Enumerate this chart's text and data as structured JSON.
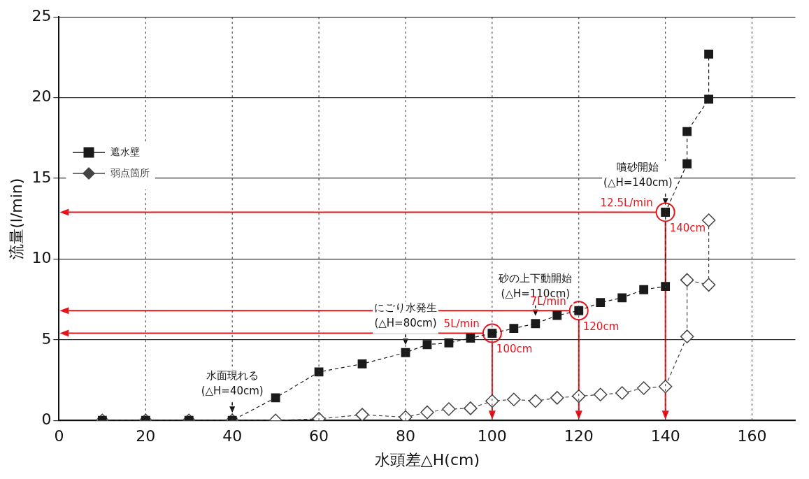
{
  "chart_data": {
    "type": "line",
    "xlabel": "水頭差△H(cm)",
    "ylabel": "流量(l/min)",
    "xlim": [
      0,
      170
    ],
    "xticks": [
      0,
      20,
      40,
      60,
      80,
      100,
      120,
      140,
      160
    ],
    "ylim": [
      0,
      25
    ],
    "yticks": [
      0,
      5,
      10,
      15,
      20,
      25
    ],
    "grid": true,
    "legend": "left",
    "line_style": "dashed",
    "series": [
      {
        "name": "遮水壁",
        "color": "#1a1a1a",
        "marker": "square",
        "x": [
          10,
          20,
          30,
          40,
          50,
          60,
          70,
          80,
          85,
          90,
          95,
          100,
          105,
          110,
          115,
          120,
          125,
          130,
          135,
          140,
          140,
          145,
          145,
          150,
          150
        ],
        "values": [
          0,
          0,
          0,
          0,
          1.4,
          3.0,
          3.5,
          4.2,
          4.7,
          4.8,
          5.1,
          5.4,
          5.7,
          6.0,
          6.5,
          6.8,
          7.3,
          7.6,
          8.1,
          8.3,
          12.9,
          15.9,
          17.9,
          19.9,
          22.7
        ]
      },
      {
        "name": "弱点箇所",
        "color": "#444444",
        "marker": "diamond",
        "x": [
          10,
          20,
          30,
          40,
          50,
          60,
          70,
          80,
          85,
          90,
          95,
          100,
          105,
          110,
          115,
          120,
          125,
          130,
          135,
          140,
          145,
          145,
          150,
          150
        ],
        "values": [
          0,
          0,
          0,
          0,
          0,
          0.1,
          0.35,
          0.2,
          0.5,
          0.7,
          0.75,
          1.2,
          1.3,
          1.2,
          1.4,
          1.5,
          1.6,
          1.7,
          2.0,
          2.1,
          5.2,
          8.7,
          8.4,
          12.4
        ]
      }
    ],
    "annotations": [
      {
        "text": "水面現れる\n(△H=40cm)",
        "x": 40,
        "y": 0
      },
      {
        "text": "にごり水発生\n(△H=80cm)",
        "x": 80,
        "y": 4.2
      },
      {
        "text": "砂の上下動開始\n(△H=110cm)",
        "x": 110,
        "y": 6.0
      },
      {
        "text": "噴砂開始\n(△H=140cm)",
        "x": 140,
        "y": 12.9
      },
      {
        "text": "5L/min",
        "x": 100,
        "y": 5.4
      },
      {
        "text": "100cm",
        "x": 100,
        "y": 5.4
      },
      {
        "text": "7L/min",
        "x": 120,
        "y": 6.8
      },
      {
        "text": "120cm",
        "x": 120,
        "y": 6.8
      },
      {
        "text": "12.5L/min",
        "x": 140,
        "y": 12.9
      },
      {
        "text": "140cm",
        "x": 140,
        "y": 12.9
      }
    ]
  }
}
